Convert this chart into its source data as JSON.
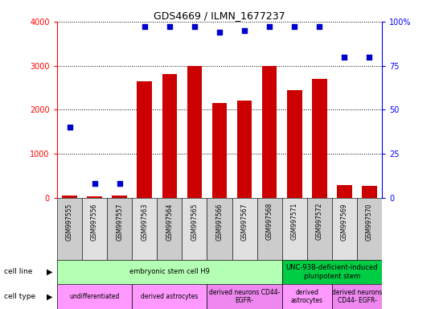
{
  "title": "GDS4669 / ILMN_1677237",
  "samples": [
    "GSM997555",
    "GSM997556",
    "GSM997557",
    "GSM997563",
    "GSM997564",
    "GSM997565",
    "GSM997566",
    "GSM997567",
    "GSM997568",
    "GSM997571",
    "GSM997572",
    "GSM997569",
    "GSM997570"
  ],
  "counts": [
    50,
    30,
    50,
    2650,
    2820,
    3000,
    2150,
    2200,
    3000,
    2450,
    2700,
    300,
    280
  ],
  "percentiles": [
    40,
    8,
    8,
    97,
    97,
    97,
    94,
    95,
    97,
    97,
    97,
    80,
    80
  ],
  "bar_color": "#cc0000",
  "dot_color": "#0000cc",
  "ylim_left": [
    0,
    4000
  ],
  "ylim_right": [
    0,
    100
  ],
  "yticks_left": [
    0,
    1000,
    2000,
    3000,
    4000
  ],
  "yticks_right": [
    0,
    25,
    50,
    75,
    100
  ],
  "ytick_right_labels": [
    "0",
    "25",
    "50",
    "75",
    "100%"
  ],
  "cell_line_groups": [
    {
      "label": "embryonic stem cell H9",
      "start": 0,
      "end": 9,
      "color": "#b3ffb3"
    },
    {
      "label": "UNC-93B-deficient-induced\npluripotent stem",
      "start": 9,
      "end": 13,
      "color": "#00cc44"
    }
  ],
  "cell_type_groups": [
    {
      "label": "undifferentiated",
      "start": 0,
      "end": 3,
      "color": "#ff99ff"
    },
    {
      "label": "derived astrocytes",
      "start": 3,
      "end": 6,
      "color": "#ff99ff"
    },
    {
      "label": "derived neurons CD44-\nEGFR-",
      "start": 6,
      "end": 9,
      "color": "#ee88ee"
    },
    {
      "label": "derived\nastrocytes",
      "start": 9,
      "end": 11,
      "color": "#ff99ff"
    },
    {
      "label": "derived neurons\nCD44- EGFR-",
      "start": 11,
      "end": 13,
      "color": "#ee88ee"
    }
  ],
  "legend_count_color": "#cc0000",
  "legend_pct_color": "#0000cc",
  "background_color": "#ffffff",
  "xticklabel_bg": "#cccccc"
}
